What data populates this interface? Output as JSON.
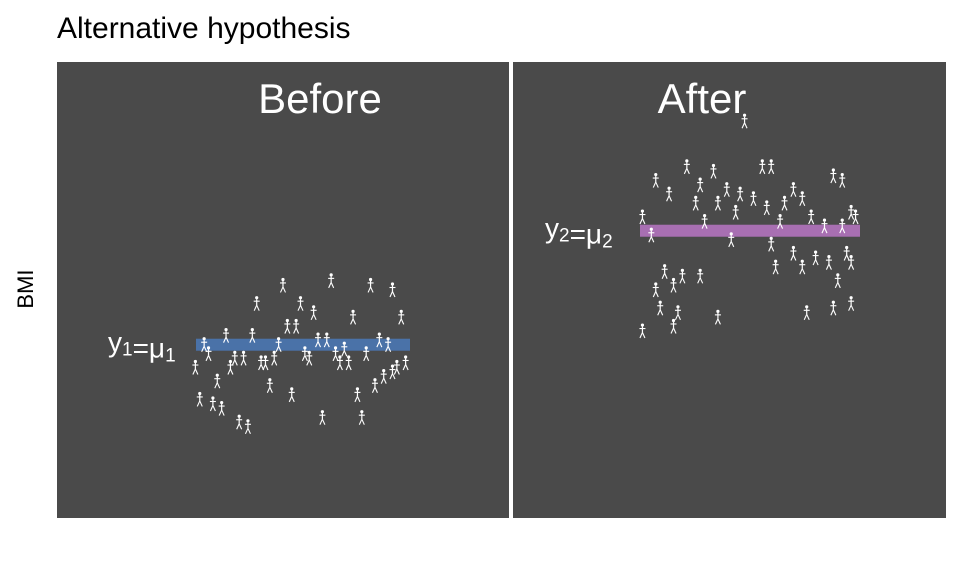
{
  "title": "Alternative hypothesis",
  "chart_data": {
    "type": "scatter",
    "title": "Alternative hypothesis",
    "ylabel": "BMI",
    "xlabel": "",
    "grid": false,
    "ylim": [
      0,
      100
    ],
    "panels": [
      {
        "label": "Before",
        "mean_label": "y1=μ1",
        "mean_color": "#4A72A8",
        "mean": 38,
        "people": [
          [
            0.64,
            52
          ],
          [
            0.82,
            51
          ],
          [
            0.42,
            51
          ],
          [
            0.92,
            50
          ],
          [
            0.3,
            47
          ],
          [
            0.5,
            47
          ],
          [
            0.56,
            45
          ],
          [
            0.74,
            44
          ],
          [
            0.96,
            44
          ],
          [
            0.44,
            42
          ],
          [
            0.48,
            42
          ],
          [
            0.16,
            40
          ],
          [
            0.28,
            40
          ],
          [
            0.58,
            39
          ],
          [
            0.62,
            39
          ],
          [
            0.86,
            39
          ],
          [
            0.9,
            38
          ],
          [
            0.06,
            38
          ],
          [
            0.4,
            38
          ],
          [
            0.08,
            36
          ],
          [
            0.2,
            35
          ],
          [
            0.24,
            35
          ],
          [
            0.34,
            34
          ],
          [
            0.68,
            34
          ],
          [
            0.72,
            34
          ],
          [
            0.52,
            36
          ],
          [
            0.8,
            36
          ],
          [
            0.38,
            35
          ],
          [
            0.98,
            34
          ],
          [
            0.92,
            32
          ],
          [
            0.12,
            30
          ],
          [
            0.36,
            29
          ],
          [
            0.46,
            27
          ],
          [
            0.76,
            27
          ],
          [
            0.1,
            25
          ],
          [
            0.14,
            24
          ],
          [
            0.6,
            22
          ],
          [
            0.78,
            22
          ],
          [
            0.22,
            21
          ],
          [
            0.26,
            20
          ],
          [
            0.02,
            33
          ],
          [
            0.66,
            36
          ],
          [
            0.7,
            37
          ],
          [
            0.54,
            35
          ],
          [
            0.18,
            33
          ],
          [
            0.32,
            34
          ],
          [
            0.84,
            29
          ],
          [
            0.88,
            31
          ],
          [
            0.04,
            26
          ],
          [
            0.94,
            33
          ]
        ]
      },
      {
        "label": "After",
        "mean_label": "y2=μ2",
        "mean_color": "#A86FB2",
        "mean": 63,
        "people": [
          [
            0.48,
            87
          ],
          [
            0.22,
            77
          ],
          [
            0.34,
            76
          ],
          [
            0.56,
            77
          ],
          [
            0.6,
            77
          ],
          [
            0.88,
            75
          ],
          [
            0.08,
            74
          ],
          [
            0.7,
            72
          ],
          [
            0.92,
            74
          ],
          [
            0.14,
            71
          ],
          [
            0.28,
            73
          ],
          [
            0.4,
            72
          ],
          [
            0.46,
            71
          ],
          [
            0.52,
            70
          ],
          [
            0.66,
            69
          ],
          [
            0.74,
            70
          ],
          [
            0.26,
            69
          ],
          [
            0.36,
            69
          ],
          [
            0.58,
            68
          ],
          [
            0.96,
            67
          ],
          [
            0.98,
            66
          ],
          [
            0.44,
            67
          ],
          [
            0.64,
            65
          ],
          [
            0.78,
            66
          ],
          [
            0.84,
            64
          ],
          [
            0.3,
            65
          ],
          [
            0.02,
            66
          ],
          [
            0.06,
            62
          ],
          [
            0.42,
            61
          ],
          [
            0.6,
            60
          ],
          [
            0.7,
            58
          ],
          [
            0.8,
            57
          ],
          [
            0.96,
            56
          ],
          [
            0.12,
            54
          ],
          [
            0.2,
            53
          ],
          [
            0.62,
            55
          ],
          [
            0.86,
            56
          ],
          [
            0.74,
            55
          ],
          [
            0.9,
            52
          ],
          [
            0.08,
            50
          ],
          [
            0.16,
            51
          ],
          [
            0.28,
            53
          ],
          [
            0.1,
            46
          ],
          [
            0.18,
            45
          ],
          [
            0.36,
            44
          ],
          [
            0.76,
            45
          ],
          [
            0.88,
            46
          ],
          [
            0.96,
            47
          ],
          [
            0.02,
            41
          ],
          [
            0.16,
            42
          ],
          [
            0.92,
            64
          ],
          [
            0.94,
            58
          ]
        ]
      }
    ]
  }
}
